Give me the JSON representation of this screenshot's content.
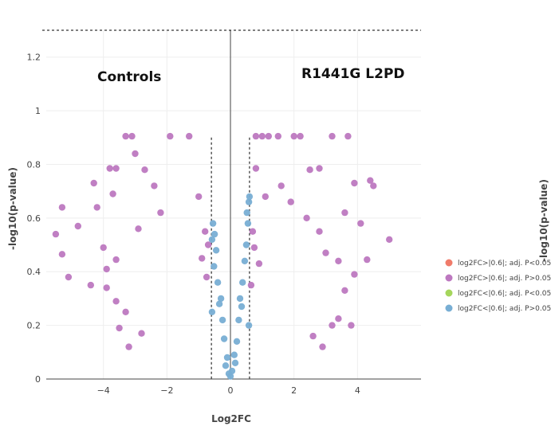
{
  "chart_data": {
    "type": "scatter",
    "xlabel": "Log2FC",
    "ylabel": "-log10(p-value)",
    "ylabel_right": "-log10(p-value)",
    "xlim": [
      -5.8,
      6
    ],
    "ylim": [
      0,
      1.3
    ],
    "x_ticks": [
      -4,
      -2,
      0,
      2,
      4
    ],
    "x_tick_labels": [
      "−4",
      "−2",
      "0",
      "2",
      "4"
    ],
    "y_ticks": [
      0,
      0.2,
      0.4,
      0.6,
      0.8,
      1,
      1.2
    ],
    "y_tick_labels": [
      "0",
      "0.2",
      "0.4",
      "0.6",
      "0.8",
      "1",
      "1.2"
    ],
    "grid": true,
    "annotations": [
      {
        "text": "Controls",
        "x": -4.2,
        "y": 1.1
      },
      {
        "text": "R1441G L2PD",
        "x": 2.2,
        "y": 1.12
      }
    ],
    "reference_lines": [
      {
        "orientation": "vertical",
        "x": -0.6,
        "y_range": [
          0,
          0.9
        ],
        "style": "dashed"
      },
      {
        "orientation": "vertical",
        "x": 0.6,
        "y_range": [
          0,
          0.9
        ],
        "style": "dashed"
      },
      {
        "orientation": "horizontal",
        "y": 1.3,
        "style": "dashed"
      }
    ],
    "legend_position": "bottom-right",
    "series": [
      {
        "name": "log2FC>|0.6|; adj. P<0.05",
        "color": "#f07b6a",
        "points": []
      },
      {
        "name": "log2FC>|0.6|; adj. P>0.05",
        "color": "#bd78c0",
        "points": [
          [
            -3.1,
            0.905
          ],
          [
            -3.3,
            0.905
          ],
          [
            -1.9,
            0.905
          ],
          [
            -1.3,
            0.905
          ],
          [
            0.8,
            0.905
          ],
          [
            1.0,
            0.905
          ],
          [
            1.2,
            0.905
          ],
          [
            1.5,
            0.905
          ],
          [
            2.0,
            0.905
          ],
          [
            2.2,
            0.905
          ],
          [
            3.2,
            0.905
          ],
          [
            3.7,
            0.905
          ],
          [
            -3.0,
            0.84
          ],
          [
            -3.8,
            0.785
          ],
          [
            -3.6,
            0.785
          ],
          [
            0.8,
            0.785
          ],
          [
            2.8,
            0.785
          ],
          [
            -2.7,
            0.78
          ],
          [
            2.5,
            0.78
          ],
          [
            3.9,
            0.73
          ],
          [
            4.4,
            0.74
          ],
          [
            4.5,
            0.72
          ],
          [
            -5.5,
            0.54
          ],
          [
            -5.3,
            0.465
          ],
          [
            -5.1,
            0.38
          ],
          [
            -5.3,
            0.64
          ],
          [
            -4.8,
            0.57
          ],
          [
            -4.2,
            0.64
          ],
          [
            -4.3,
            0.73
          ],
          [
            -4.0,
            0.49
          ],
          [
            -3.9,
            0.41
          ],
          [
            -3.6,
            0.445
          ],
          [
            -4.4,
            0.35
          ],
          [
            -3.9,
            0.34
          ],
          [
            -3.6,
            0.29
          ],
          [
            -3.3,
            0.25
          ],
          [
            -3.5,
            0.19
          ],
          [
            -2.9,
            0.56
          ],
          [
            -3.7,
            0.69
          ],
          [
            5.0,
            0.52
          ],
          [
            4.3,
            0.445
          ],
          [
            4.1,
            0.58
          ],
          [
            3.6,
            0.62
          ],
          [
            3.9,
            0.39
          ],
          [
            3.6,
            0.33
          ],
          [
            3.8,
            0.2
          ],
          [
            3.4,
            0.225
          ],
          [
            3.2,
            0.2
          ],
          [
            3.0,
            0.47
          ],
          [
            2.8,
            0.55
          ],
          [
            2.4,
            0.6
          ],
          [
            3.4,
            0.44
          ],
          [
            -0.8,
            0.55
          ],
          [
            -0.7,
            0.5
          ],
          [
            -0.9,
            0.45
          ],
          [
            -0.75,
            0.38
          ],
          [
            0.7,
            0.55
          ],
          [
            0.75,
            0.49
          ],
          [
            0.9,
            0.43
          ],
          [
            0.65,
            0.35
          ],
          [
            -2.4,
            0.72
          ],
          [
            -2.2,
            0.62
          ],
          [
            1.6,
            0.72
          ],
          [
            1.9,
            0.66
          ],
          [
            -1.0,
            0.68
          ],
          [
            1.1,
            0.68
          ],
          [
            -3.2,
            0.12
          ],
          [
            -2.8,
            0.17
          ],
          [
            2.6,
            0.16
          ],
          [
            2.9,
            0.12
          ]
        ]
      },
      {
        "name": "log2FC<|0.6|; adj. P<0.05",
        "color": "#a5d65c",
        "points": []
      },
      {
        "name": "log2FC<|0.6|; adj. P>0.05",
        "color": "#78aed4",
        "points": [
          [
            -0.55,
            0.58
          ],
          [
            -0.5,
            0.54
          ],
          [
            -0.58,
            0.52
          ],
          [
            -0.45,
            0.48
          ],
          [
            -0.52,
            0.42
          ],
          [
            -0.4,
            0.36
          ],
          [
            -0.3,
            0.3
          ],
          [
            -0.25,
            0.22
          ],
          [
            -0.2,
            0.15
          ],
          [
            -0.1,
            0.08
          ],
          [
            -0.05,
            0.02
          ],
          [
            0.0,
            0.01
          ],
          [
            0.05,
            0.03
          ],
          [
            0.12,
            0.09
          ],
          [
            0.2,
            0.14
          ],
          [
            0.26,
            0.22
          ],
          [
            0.3,
            0.3
          ],
          [
            0.38,
            0.36
          ],
          [
            0.45,
            0.44
          ],
          [
            0.5,
            0.5
          ],
          [
            0.55,
            0.58
          ],
          [
            0.58,
            0.66
          ],
          [
            0.52,
            0.62
          ],
          [
            0.6,
            0.68
          ],
          [
            -0.35,
            0.28
          ],
          [
            0.35,
            0.27
          ],
          [
            -0.15,
            0.05
          ],
          [
            0.15,
            0.06
          ],
          [
            -0.58,
            0.25
          ],
          [
            0.58,
            0.2
          ]
        ]
      }
    ]
  }
}
